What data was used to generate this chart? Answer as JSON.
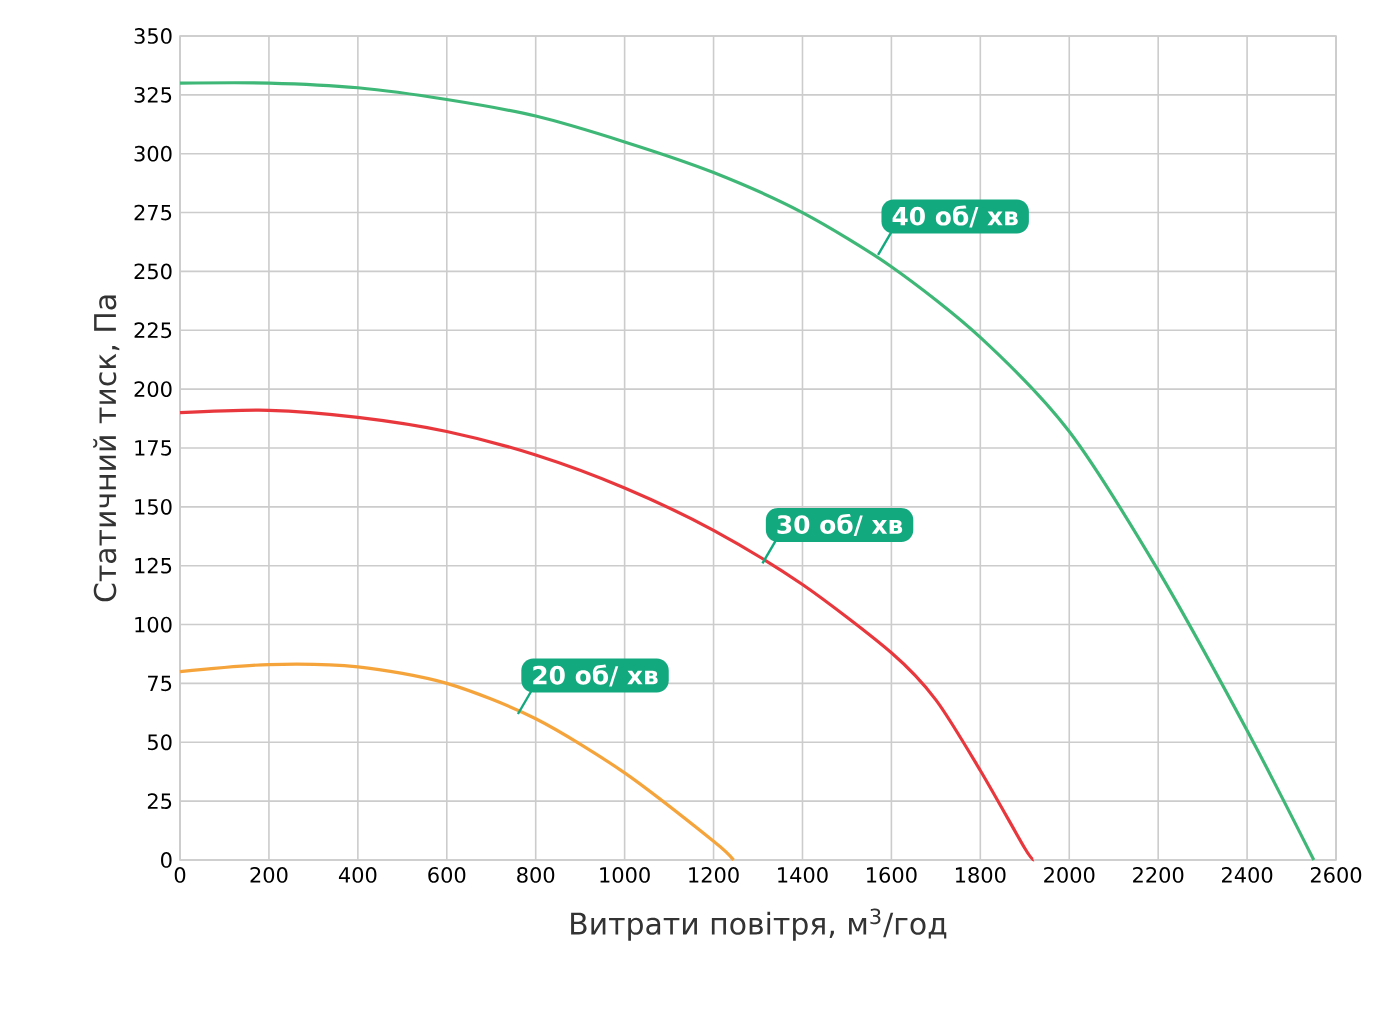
{
  "chart_data": {
    "type": "line",
    "xlabel": "Витрати повітря, м$^{3}$/год",
    "ylabel": "Статичний тиск, Па",
    "xlim": [
      0,
      2600
    ],
    "xticks": [
      0,
      200,
      400,
      600,
      800,
      1000,
      1200,
      1400,
      1600,
      1800,
      2000,
      2200,
      2400,
      2600
    ],
    "ylim": [
      0,
      350
    ],
    "yticks": [
      0,
      25,
      50,
      75,
      100,
      125,
      150,
      175,
      200,
      225,
      250,
      275,
      300,
      325,
      350
    ],
    "grid": true,
    "marker": "none",
    "line_style": "solid",
    "series": [
      {
        "color": "#f5a43c",
        "x": [
          0,
          200,
          400,
          600,
          800,
          1000,
          1200,
          1245
        ],
        "values": [
          80,
          83,
          82,
          75,
          60,
          37,
          8,
          0
        ]
      },
      {
        "color": "#e8383d",
        "x": [
          0,
          200,
          400,
          600,
          800,
          1000,
          1200,
          1400,
          1600,
          1700,
          1800,
          1900,
          1920
        ],
        "values": [
          190,
          191,
          188,
          182,
          172,
          158,
          140,
          117,
          88,
          68,
          38,
          5,
          0
        ]
      },
      {
        "color": "#3fb877",
        "x": [
          0,
          200,
          400,
          600,
          800,
          1000,
          1200,
          1400,
          1600,
          1800,
          2000,
          2200,
          2400,
          2550
        ],
        "values": [
          330,
          330,
          328,
          323,
          316,
          305,
          292,
          275,
          252,
          222,
          182,
          123,
          55,
          0
        ]
      }
    ],
    "annotations": [
      {
        "text": "20 об/ хв",
        "x": 760,
        "y": 62
      },
      {
        "text": "30 об/ хв",
        "x": 1310,
        "y": 126
      },
      {
        "text": "40 об/ хв",
        "x": 1570,
        "y": 257
      }
    ]
  }
}
